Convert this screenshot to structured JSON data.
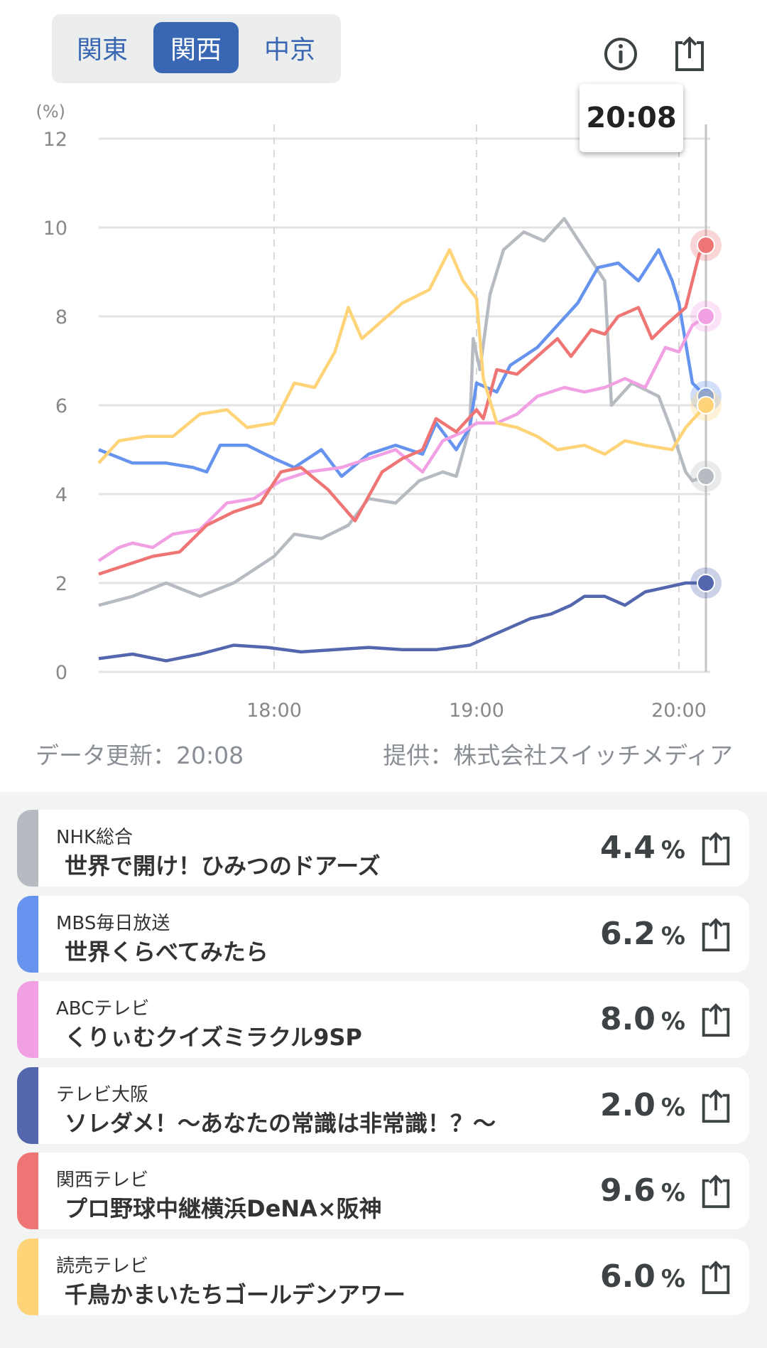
{
  "region_tabs": [
    {
      "label": "関東",
      "active": false
    },
    {
      "label": "関西",
      "active": true
    },
    {
      "label": "中京",
      "active": false
    }
  ],
  "icons": {
    "info": "info-circle-icon",
    "share": "share-icon"
  },
  "tooltip": "20:08",
  "footer": {
    "updated": "データ更新：20:08",
    "provider": "提供：株式会社スイッチメディア"
  },
  "chart_data": {
    "type": "line",
    "ylabel": "(%)",
    "ylim": [
      0,
      12
    ],
    "yticks": [
      "0",
      "2",
      "4",
      "6",
      "8",
      "10",
      "12"
    ],
    "x_unit": "minutes since 17:08",
    "xlim": [
      0,
      180
    ],
    "xticks": [
      {
        "label": "18:00",
        "m": 52
      },
      {
        "label": "19:00",
        "m": 112
      },
      {
        "label": "20:00",
        "m": 172
      }
    ],
    "grid": true,
    "cursor_time": "20:08",
    "series": [
      {
        "name": "NHK総合",
        "color": "#b6bac1",
        "points": [
          [
            0,
            1.5
          ],
          [
            10,
            1.7
          ],
          [
            20,
            2.0
          ],
          [
            30,
            1.7
          ],
          [
            40,
            2.0
          ],
          [
            52,
            2.6
          ],
          [
            58,
            3.1
          ],
          [
            66,
            3.0
          ],
          [
            74,
            3.3
          ],
          [
            80,
            3.9
          ],
          [
            88,
            3.8
          ],
          [
            95,
            4.3
          ],
          [
            102,
            4.5
          ],
          [
            106,
            4.4
          ],
          [
            110,
            5.5
          ],
          [
            111,
            7.5
          ],
          [
            113,
            6.8
          ],
          [
            116,
            8.5
          ],
          [
            120,
            9.5
          ],
          [
            126,
            9.9
          ],
          [
            132,
            9.7
          ],
          [
            138,
            10.2
          ],
          [
            144,
            9.5
          ],
          [
            150,
            8.8
          ],
          [
            152,
            6.0
          ],
          [
            158,
            6.5
          ],
          [
            166,
            6.2
          ],
          [
            170,
            5.4
          ],
          [
            174,
            4.5
          ],
          [
            176,
            4.3
          ],
          [
            180,
            4.4
          ]
        ]
      },
      {
        "name": "MBS毎日放送",
        "color": "#6593ee",
        "points": [
          [
            0,
            5.0
          ],
          [
            10,
            4.7
          ],
          [
            20,
            4.7
          ],
          [
            28,
            4.6
          ],
          [
            32,
            4.5
          ],
          [
            36,
            5.1
          ],
          [
            44,
            5.1
          ],
          [
            52,
            4.8
          ],
          [
            58,
            4.6
          ],
          [
            66,
            5.0
          ],
          [
            72,
            4.4
          ],
          [
            80,
            4.9
          ],
          [
            88,
            5.1
          ],
          [
            96,
            4.9
          ],
          [
            100,
            5.6
          ],
          [
            106,
            5.0
          ],
          [
            110,
            5.5
          ],
          [
            112,
            6.5
          ],
          [
            118,
            6.3
          ],
          [
            122,
            6.9
          ],
          [
            130,
            7.3
          ],
          [
            136,
            7.8
          ],
          [
            142,
            8.3
          ],
          [
            148,
            9.1
          ],
          [
            154,
            9.2
          ],
          [
            160,
            8.8
          ],
          [
            166,
            9.5
          ],
          [
            170,
            8.8
          ],
          [
            172,
            8.3
          ],
          [
            176,
            6.5
          ],
          [
            180,
            6.2
          ]
        ]
      },
      {
        "name": "ABCテレビ",
        "color": "#f2a0e4",
        "points": [
          [
            0,
            2.5
          ],
          [
            6,
            2.8
          ],
          [
            10,
            2.9
          ],
          [
            16,
            2.8
          ],
          [
            22,
            3.1
          ],
          [
            30,
            3.2
          ],
          [
            38,
            3.8
          ],
          [
            46,
            3.9
          ],
          [
            54,
            4.3
          ],
          [
            62,
            4.5
          ],
          [
            72,
            4.6
          ],
          [
            80,
            4.8
          ],
          [
            88,
            5.0
          ],
          [
            96,
            4.5
          ],
          [
            102,
            5.2
          ],
          [
            108,
            5.4
          ],
          [
            112,
            5.6
          ],
          [
            118,
            5.6
          ],
          [
            124,
            5.8
          ],
          [
            130,
            6.2
          ],
          [
            138,
            6.4
          ],
          [
            144,
            6.3
          ],
          [
            150,
            6.4
          ],
          [
            156,
            6.6
          ],
          [
            162,
            6.4
          ],
          [
            168,
            7.3
          ],
          [
            172,
            7.2
          ],
          [
            176,
            7.8
          ],
          [
            180,
            8.0
          ]
        ]
      },
      {
        "name": "テレビ大阪",
        "color": "#5466ad",
        "points": [
          [
            0,
            0.3
          ],
          [
            10,
            0.4
          ],
          [
            20,
            0.25
          ],
          [
            30,
            0.4
          ],
          [
            40,
            0.6
          ],
          [
            50,
            0.55
          ],
          [
            60,
            0.45
          ],
          [
            70,
            0.5
          ],
          [
            80,
            0.55
          ],
          [
            90,
            0.5
          ],
          [
            100,
            0.5
          ],
          [
            110,
            0.6
          ],
          [
            116,
            0.8
          ],
          [
            122,
            1.0
          ],
          [
            128,
            1.2
          ],
          [
            134,
            1.3
          ],
          [
            140,
            1.5
          ],
          [
            144,
            1.7
          ],
          [
            150,
            1.7
          ],
          [
            156,
            1.5
          ],
          [
            162,
            1.8
          ],
          [
            168,
            1.9
          ],
          [
            174,
            2.0
          ],
          [
            180,
            2.0
          ]
        ]
      },
      {
        "name": "関西テレビ",
        "color": "#ef7575",
        "points": [
          [
            0,
            2.2
          ],
          [
            8,
            2.4
          ],
          [
            16,
            2.6
          ],
          [
            24,
            2.7
          ],
          [
            32,
            3.3
          ],
          [
            40,
            3.6
          ],
          [
            48,
            3.8
          ],
          [
            54,
            4.5
          ],
          [
            60,
            4.6
          ],
          [
            68,
            4.1
          ],
          [
            76,
            3.4
          ],
          [
            84,
            4.5
          ],
          [
            90,
            4.8
          ],
          [
            96,
            5.0
          ],
          [
            100,
            5.7
          ],
          [
            106,
            5.4
          ],
          [
            112,
            5.9
          ],
          [
            114,
            5.7
          ],
          [
            118,
            6.8
          ],
          [
            124,
            6.7
          ],
          [
            130,
            7.1
          ],
          [
            136,
            7.5
          ],
          [
            140,
            7.1
          ],
          [
            146,
            7.7
          ],
          [
            150,
            7.6
          ],
          [
            154,
            8.0
          ],
          [
            160,
            8.2
          ],
          [
            164,
            7.5
          ],
          [
            168,
            7.8
          ],
          [
            174,
            8.2
          ],
          [
            178,
            9.4
          ],
          [
            180,
            9.6
          ]
        ]
      },
      {
        "name": "読売テレビ",
        "color": "#ffd479",
        "points": [
          [
            0,
            4.7
          ],
          [
            6,
            5.2
          ],
          [
            14,
            5.3
          ],
          [
            22,
            5.3
          ],
          [
            30,
            5.8
          ],
          [
            38,
            5.9
          ],
          [
            44,
            5.5
          ],
          [
            52,
            5.6
          ],
          [
            58,
            6.5
          ],
          [
            64,
            6.4
          ],
          [
            70,
            7.2
          ],
          [
            74,
            8.2
          ],
          [
            78,
            7.5
          ],
          [
            84,
            7.9
          ],
          [
            90,
            8.3
          ],
          [
            98,
            8.6
          ],
          [
            104,
            9.5
          ],
          [
            108,
            8.8
          ],
          [
            112,
            8.4
          ],
          [
            114,
            6.6
          ],
          [
            118,
            5.6
          ],
          [
            124,
            5.5
          ],
          [
            130,
            5.3
          ],
          [
            136,
            5.0
          ],
          [
            144,
            5.1
          ],
          [
            150,
            4.9
          ],
          [
            156,
            5.2
          ],
          [
            162,
            5.1
          ],
          [
            170,
            5.0
          ],
          [
            174,
            5.5
          ],
          [
            180,
            6.0
          ]
        ]
      }
    ]
  },
  "programs": [
    {
      "channel": "NHK総合",
      "title": "世界で開け！ひみつのドアーズ",
      "rating": "4.4",
      "unit": "%",
      "color": "#b6bac1"
    },
    {
      "channel": "MBS毎日放送",
      "title": "世界くらべてみたら",
      "rating": "6.2",
      "unit": "%",
      "color": "#6593ee"
    },
    {
      "channel": "ABCテレビ",
      "title": "くりぃむクイズミラクル9SP",
      "rating": "8.0",
      "unit": "%",
      "color": "#f2a0e4"
    },
    {
      "channel": "テレビ大阪",
      "title": "ソレダメ！～あなたの常識は非常識！？～",
      "rating": "2.0",
      "unit": "%",
      "color": "#5466ad"
    },
    {
      "channel": "関西テレビ",
      "title": "プロ野球中継横浜DeNA×阪神",
      "rating": "9.6",
      "unit": "%",
      "color": "#ef7575"
    },
    {
      "channel": "読売テレビ",
      "title": "千鳥かまいたちゴールデンアワー",
      "rating": "6.0",
      "unit": "%",
      "color": "#ffd479"
    }
  ]
}
